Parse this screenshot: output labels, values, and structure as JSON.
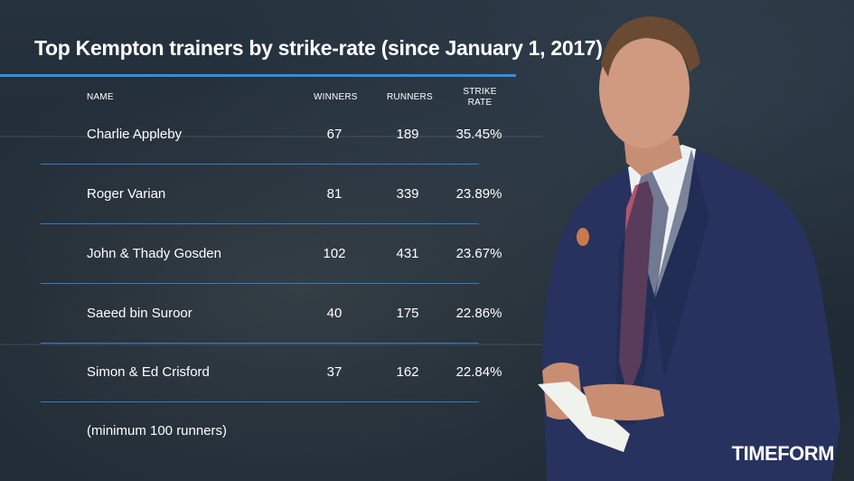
{
  "title": "Top Kempton trainers by strike-rate (since January 1, 2017)",
  "columns": {
    "name": "NAME",
    "winners": "WINNERS",
    "runners": "RUNNERS",
    "strike_rate_line1": "STRIKE",
    "strike_rate_line2": "RATE"
  },
  "rows": [
    {
      "name": "Charlie Appleby",
      "winners": "67",
      "runners": "189",
      "strike_rate": "35.45%"
    },
    {
      "name": "Roger Varian",
      "winners": "81",
      "runners": "339",
      "strike_rate": "23.89%"
    },
    {
      "name": "John & Thady Gosden",
      "winners": "102",
      "runners": "431",
      "strike_rate": "23.67%"
    },
    {
      "name": "Saeed bin Suroor",
      "winners": "40",
      "runners": "175",
      "strike_rate": "22.86%"
    },
    {
      "name": "Simon & Ed Crisford",
      "winners": "37",
      "runners": "162",
      "strike_rate": "22.84%"
    }
  ],
  "footnote": "(minimum 100 runners)",
  "logo": "TIMEFORM",
  "colors": {
    "accent": "#2e8fe0",
    "background": "#1f2a36",
    "text": "#ffffff"
  }
}
